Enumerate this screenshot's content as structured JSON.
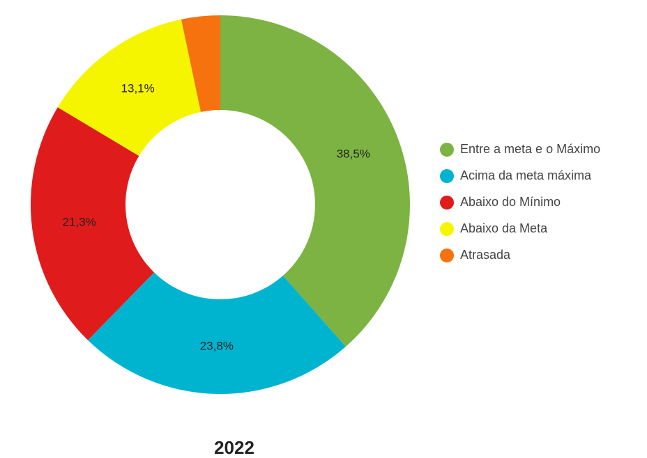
{
  "chart_data": {
    "type": "donut",
    "title": "2022",
    "categories": [
      "Entre a meta e o Máximo",
      "Acima da meta máxima",
      "Abaixo do Mínimo",
      "Abaixo da Meta",
      "Atrasada"
    ],
    "values": [
      38.5,
      23.8,
      21.3,
      13.1,
      3.3
    ],
    "value_labels": [
      "38,5%",
      "23,8%",
      "21,3%",
      "13,1%",
      null
    ],
    "colors": [
      "#7cb342",
      "#00b4d0",
      "#e01b1b",
      "#f5f500",
      "#f5720e"
    ],
    "legend": "right"
  }
}
